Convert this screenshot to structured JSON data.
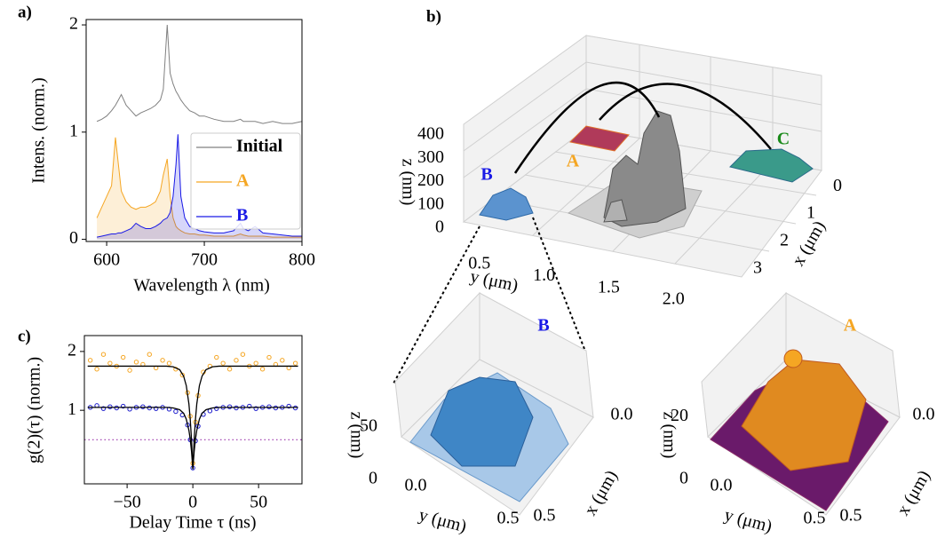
{
  "chart_data": [
    {
      "type": "line",
      "panel_label": "a)",
      "xlabel": "Wavelength λ (nm)",
      "ylabel": "Intens. (norm.)",
      "xlim": [
        579,
        800
      ],
      "xticks": [
        600,
        700,
        800
      ],
      "ylim": [
        -0.02,
        2.05
      ],
      "yticks": [
        0,
        1,
        2
      ],
      "legend": "center right",
      "x": [
        590,
        595,
        600,
        605,
        609,
        612,
        615,
        620,
        625,
        630,
        635,
        640,
        645,
        650,
        655,
        658,
        662,
        665,
        668,
        671,
        673,
        676,
        680,
        685,
        690,
        695,
        700,
        710,
        720,
        730,
        737,
        740,
        745,
        752,
        760,
        770,
        780,
        790,
        800
      ],
      "series": [
        {
          "name": "Initial",
          "color": "#808080",
          "label_color": "#000000",
          "fill": false,
          "values": [
            1.1,
            1.12,
            1.15,
            1.2,
            1.25,
            1.3,
            1.35,
            1.25,
            1.2,
            1.15,
            1.18,
            1.2,
            1.22,
            1.25,
            1.3,
            1.4,
            2.0,
            1.55,
            1.45,
            1.38,
            1.35,
            1.3,
            1.25,
            1.2,
            1.18,
            1.15,
            1.15,
            1.12,
            1.1,
            1.1,
            1.12,
            1.1,
            1.1,
            1.1,
            1.08,
            1.1,
            1.08,
            1.08,
            1.1
          ]
        },
        {
          "name": "A",
          "color": "#f5a623",
          "label_color": "#f5a623",
          "fill": true,
          "values": [
            0.2,
            0.3,
            0.4,
            0.5,
            0.95,
            0.7,
            0.45,
            0.35,
            0.3,
            0.28,
            0.3,
            0.3,
            0.32,
            0.35,
            0.45,
            0.6,
            0.75,
            0.4,
            0.2,
            0.12,
            0.1,
            0.08,
            0.06,
            0.05,
            0.05,
            0.04,
            0.04,
            0.03,
            0.03,
            0.03,
            0.05,
            0.04,
            0.03,
            0.03,
            0.03,
            0.02,
            0.02,
            0.02,
            0.02
          ]
        },
        {
          "name": "B",
          "color": "#1a1ae6",
          "label_color": "#1a1ae6",
          "fill": true,
          "values": [
            0.02,
            0.03,
            0.04,
            0.05,
            0.05,
            0.06,
            0.06,
            0.08,
            0.1,
            0.15,
            0.12,
            0.1,
            0.1,
            0.12,
            0.15,
            0.18,
            0.2,
            0.25,
            0.4,
            0.7,
            0.98,
            0.4,
            0.2,
            0.12,
            0.1,
            0.08,
            0.07,
            0.06,
            0.06,
            0.08,
            0.15,
            0.1,
            0.08,
            0.12,
            0.06,
            0.05,
            0.04,
            0.03,
            0.03
          ]
        }
      ]
    },
    {
      "type": "surface3d",
      "panel_label": "b)",
      "xlabel": "x (μm)",
      "ylabel": "y (μm)",
      "zlabel": "z (nm)",
      "xlim": [
        -0.2,
        3.4
      ],
      "xticks": [
        0,
        1,
        2,
        3
      ],
      "ylim": [
        0.2,
        2.3
      ],
      "yticks": [
        0.5,
        {
          "value": 1,
          "label": "1.0"
        },
        1.5,
        {
          "value": 2,
          "label": "2.0"
        }
      ],
      "zlim": [
        0,
        400
      ],
      "zticks": [
        0,
        100,
        200,
        300,
        400
      ],
      "annotations": [
        {
          "text": "A",
          "color": "#f5a623"
        },
        {
          "text": "B",
          "color": "#1a1ae6"
        },
        {
          "text": "C",
          "color": "#1a8a1a"
        }
      ]
    },
    {
      "type": "surface3d",
      "label": "B",
      "label_color": "#1a1ae6",
      "xlabel": "x (μm)",
      "ylabel": "y (μm)",
      "zlabel": "z (nm)",
      "xlim": [
        0,
        0.5
      ],
      "xticks": [
        {
          "value": 0,
          "label": "0.0"
        },
        0.5
      ],
      "ylim": [
        0,
        0.5
      ],
      "yticks": [
        {
          "value": 0,
          "label": "0.0"
        },
        0.5
      ],
      "zlim": [
        0,
        70
      ],
      "zticks": [
        0,
        50
      ]
    },
    {
      "type": "surface3d",
      "label": "A",
      "label_color": "#f5a623",
      "xlabel": "x (μm)",
      "ylabel": "y (μm)",
      "zlabel": "z (nm)",
      "xlim": [
        0,
        0.5
      ],
      "xticks": [
        {
          "value": 0,
          "label": "0.0"
        },
        0.5
      ],
      "ylim": [
        0,
        0.5
      ],
      "yticks": [
        {
          "value": 0,
          "label": "0.0"
        },
        0.5
      ],
      "zlim": [
        0,
        25
      ],
      "zticks": [
        0,
        20
      ]
    },
    {
      "type": "scatter",
      "panel_label": "c)",
      "xlabel": "Delay Time τ (ns)",
      "ylabel": "g(2)(τ) (norm.)",
      "xlim": [
        -82.5,
        83
      ],
      "xticks": [
        {
          "value": -50,
          "label": "−50"
        },
        0,
        50
      ],
      "ylim": [
        -0.25,
        2.27
      ],
      "yticks": [
        1,
        2
      ],
      "hline": {
        "value": 0.5,
        "color": "#9933aa"
      },
      "series": [
        {
          "color": "#f5a623",
          "style": "points",
          "x": [
            -78,
            -73,
            -68,
            -63,
            -58,
            -53,
            -48,
            -43,
            -38,
            -33,
            -28,
            -23,
            -18,
            -13,
            -8,
            -4,
            -2,
            0,
            2,
            4,
            8,
            13,
            18,
            23,
            28,
            33,
            38,
            43,
            48,
            53,
            58,
            63,
            68,
            73,
            78
          ],
          "values": [
            1.85,
            1.7,
            1.95,
            1.8,
            1.75,
            1.9,
            1.68,
            1.82,
            1.78,
            1.95,
            1.72,
            1.85,
            1.8,
            1.7,
            1.6,
            1.3,
            0.9,
            0.1,
            0.8,
            1.25,
            1.65,
            1.75,
            1.9,
            1.8,
            1.7,
            1.85,
            1.95,
            1.75,
            1.8,
            1.7,
            1.9,
            1.78,
            1.85,
            1.72,
            1.8
          ]
        },
        {
          "color": "#1a1acc",
          "style": "points",
          "x": [
            -78,
            -73,
            -68,
            -63,
            -58,
            -53,
            -48,
            -43,
            -38,
            -33,
            -28,
            -23,
            -18,
            -13,
            -8,
            -4,
            -2,
            0,
            2,
            4,
            8,
            13,
            18,
            23,
            28,
            33,
            38,
            43,
            48,
            53,
            58,
            63,
            68,
            73,
            78
          ],
          "values": [
            1.05,
            1.08,
            1.03,
            1.06,
            1.04,
            1.07,
            1.02,
            1.05,
            1.06,
            1.04,
            1.03,
            1.05,
            1.02,
            0.98,
            0.92,
            0.75,
            0.5,
            0.02,
            0.48,
            0.73,
            0.93,
            0.99,
            1.03,
            1.05,
            1.06,
            1.04,
            1.05,
            1.07,
            1.03,
            1.05,
            1.06,
            1.04,
            1.05,
            1.07,
            1.04
          ]
        },
        {
          "color": "#000000",
          "style": "line",
          "x": [
            -80,
            -60,
            -40,
            -30,
            -20,
            -15,
            -10,
            -7,
            -5,
            -3,
            -2,
            -1,
            0,
            1,
            2,
            3,
            5,
            7,
            10,
            15,
            20,
            30,
            40,
            60,
            80
          ],
          "values": [
            1.75,
            1.75,
            1.75,
            1.75,
            1.75,
            1.74,
            1.69,
            1.58,
            1.42,
            1.11,
            0.85,
            0.5,
            0,
            0.5,
            0.85,
            1.11,
            1.42,
            1.58,
            1.69,
            1.74,
            1.75,
            1.75,
            1.75,
            1.75,
            1.75
          ]
        },
        {
          "color": "#000000",
          "style": "line",
          "x": [
            -80,
            -60,
            -40,
            -30,
            -20,
            -15,
            -10,
            -7,
            -5,
            -3,
            -2,
            -1,
            0,
            1,
            2,
            3,
            5,
            7,
            10,
            15,
            20,
            30,
            40,
            60,
            80
          ],
          "values": [
            1.05,
            1.05,
            1.05,
            1.05,
            1.05,
            1.04,
            1.01,
            0.95,
            0.85,
            0.66,
            0.51,
            0.3,
            0,
            0.3,
            0.51,
            0.66,
            0.85,
            0.95,
            1.01,
            1.04,
            1.05,
            1.05,
            1.05,
            1.05,
            1.05
          ]
        }
      ]
    }
  ]
}
